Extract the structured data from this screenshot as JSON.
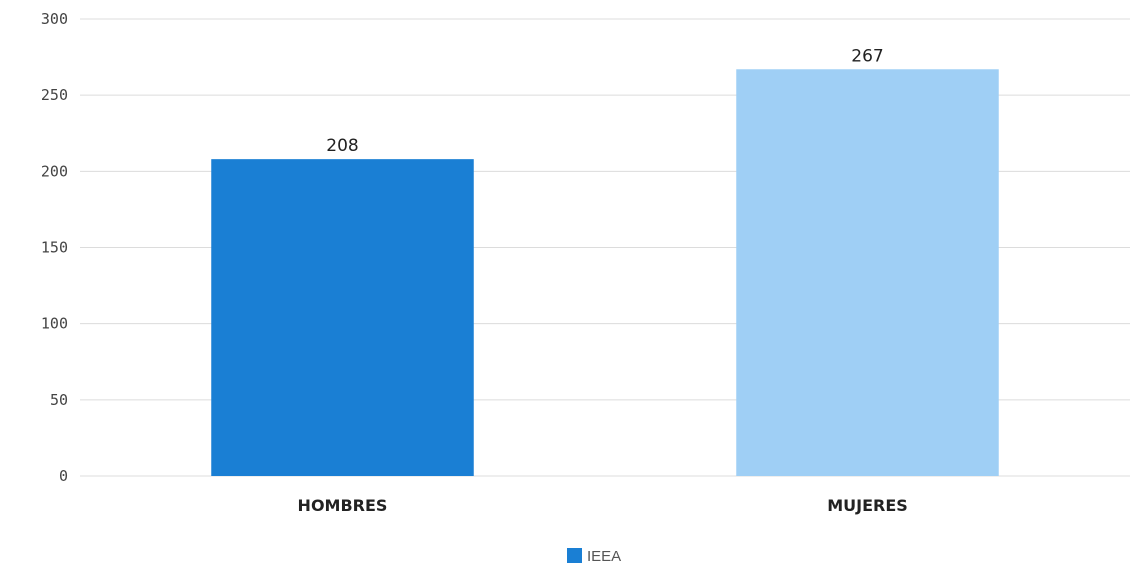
{
  "chart_data": {
    "type": "bar",
    "categories": [
      "HOMBRES",
      "MUJERES"
    ],
    "series": [
      {
        "name": "IEEA",
        "values": [
          208,
          267
        ]
      }
    ],
    "bar_colors": [
      "#1a7fd4",
      "#9fcff5"
    ],
    "data_labels": [
      "208",
      "267"
    ],
    "y_ticks": [
      "0",
      "50",
      "100",
      "150",
      "200",
      "250",
      "300"
    ],
    "ylim": [
      0,
      300
    ],
    "grid": true,
    "legend": {
      "position": "bottom",
      "entries": [
        "IEEA"
      ],
      "color": "#1a7fd4"
    }
  }
}
